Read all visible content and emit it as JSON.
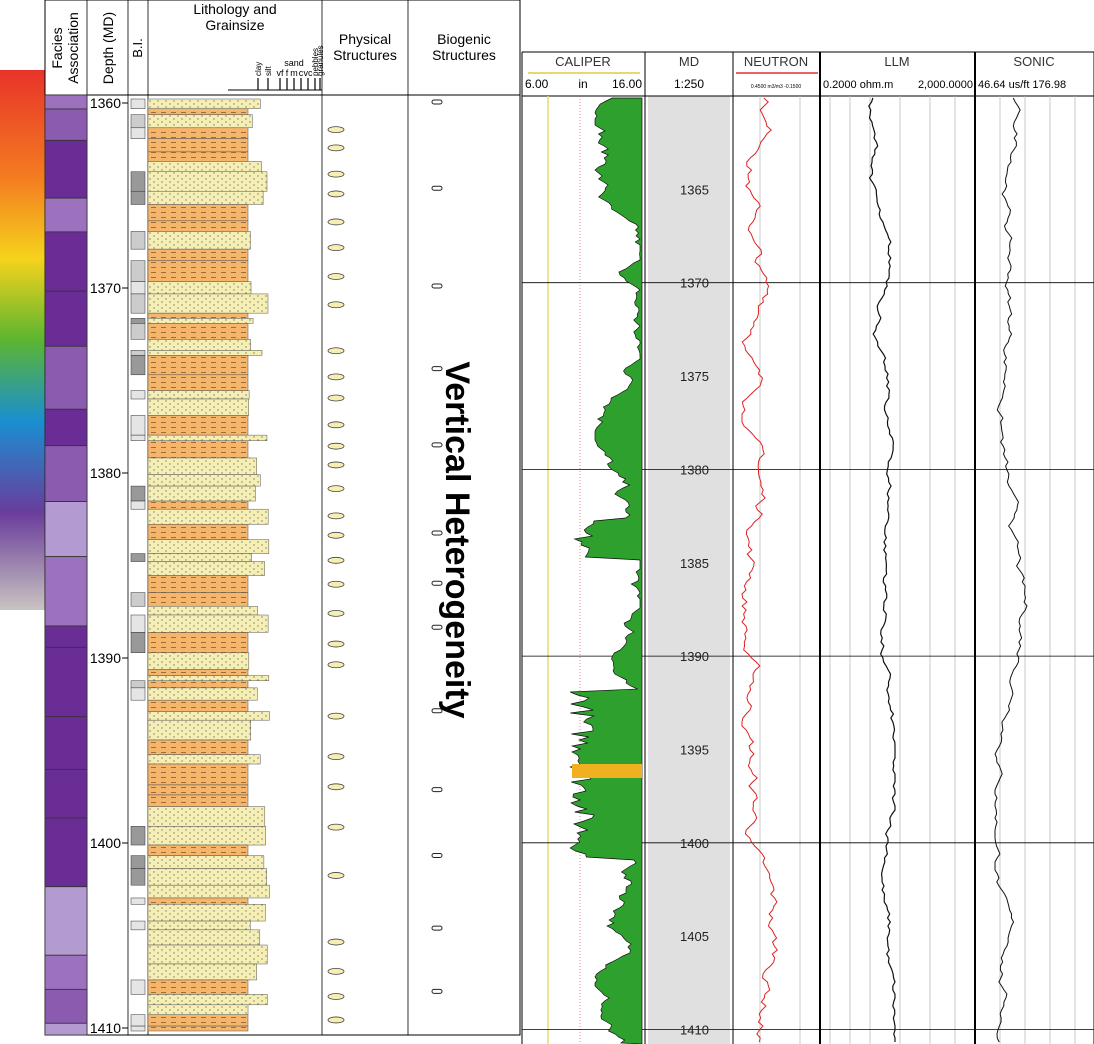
{
  "core_log": {
    "headers": {
      "facies": [
        "Facies",
        "Association"
      ],
      "depth": "Depth (MD)",
      "bi": "B.I.",
      "lithology": [
        "Lithology and",
        "Grainsize"
      ],
      "physical": [
        "Physical",
        "Structures"
      ],
      "biogenic": [
        "Biogenic",
        "Structures"
      ]
    },
    "grainsize_labels": [
      "clay",
      "silt",
      "vf",
      "f",
      "m",
      "c",
      "vc",
      "pebbles",
      "granules"
    ],
    "sand_label": "sand",
    "depths": [
      1360,
      1370,
      1380,
      1390,
      1400,
      1410
    ]
  },
  "annotation": "Vertical Heterogeneity",
  "well_log": {
    "tracks": [
      {
        "name": "CALIPER",
        "scale": [
          "6.00",
          "in",
          "16.00"
        ]
      },
      {
        "name": "MD",
        "scale": [
          "1:250"
        ]
      },
      {
        "name": "NEUTRON",
        "scale": [
          "0.4500 m3/m3 -0.1500"
        ]
      },
      {
        "name": "LLM",
        "scale": [
          "0.2000 ohm.m",
          "2,000.0000"
        ]
      },
      {
        "name": "SONIC",
        "scale": [
          "46.64 us/ft 176.98"
        ]
      }
    ],
    "depths": [
      1365,
      1370,
      1375,
      1380,
      1385,
      1390,
      1395,
      1400,
      1405,
      1410
    ]
  }
}
